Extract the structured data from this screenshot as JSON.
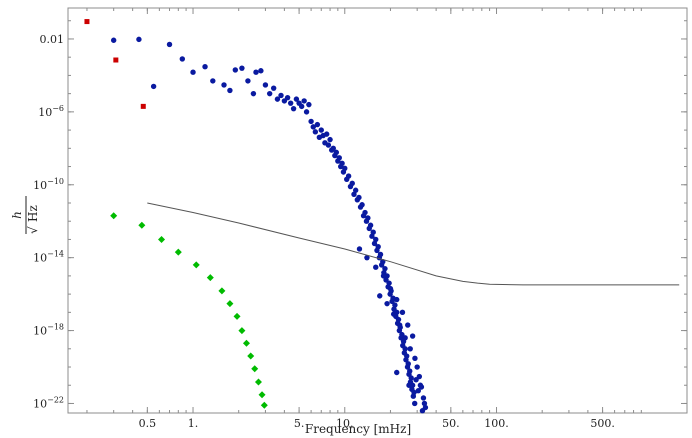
{
  "chart_data": {
    "type": "scatter",
    "xlabel": "Frequency [mHz]",
    "ylabel": "h / √Hz",
    "ylabel_parts": {
      "numerator": "h",
      "denominator": "Hz"
    },
    "x_scale": "log",
    "y_scale": "log",
    "xlim": [
      0.15,
      1800
    ],
    "ylim": [
      3e-23,
      0.5
    ],
    "grid": false,
    "x_ticks": [
      {
        "value": 0.5,
        "label": "0.5"
      },
      {
        "value": 1,
        "label": "1."
      },
      {
        "value": 5,
        "label": "5."
      },
      {
        "value": 10,
        "label": "10."
      },
      {
        "value": 50,
        "label": "50."
      },
      {
        "value": 100,
        "label": "100."
      },
      {
        "value": 500,
        "label": "500."
      }
    ],
    "y_ticks": [
      {
        "value": 0.01,
        "label": "0.01",
        "mant": "0.01",
        "exp": ""
      },
      {
        "value": 1e-06,
        "label": "10^-6",
        "mant": "10",
        "exp": "−6"
      },
      {
        "value": 1e-10,
        "label": "10^-10",
        "mant": "10",
        "exp": "−10"
      },
      {
        "value": 1e-14,
        "label": "10^-14",
        "mant": "10",
        "exp": "−14"
      },
      {
        "value": 1e-18,
        "label": "10^-18",
        "mant": "10",
        "exp": "−18"
      },
      {
        "value": 1e-22,
        "label": "10^-22",
        "mant": "10",
        "exp": "−22"
      }
    ],
    "series": [
      {
        "type": "scatter",
        "color": "#cc0000",
        "marker": "square",
        "points": [
          [
            0.2,
            0.09
          ],
          [
            0.31,
            0.0007
          ],
          [
            0.47,
            2e-06
          ]
        ]
      },
      {
        "type": "scatter",
        "color": "#00bb00",
        "marker": "diamond",
        "points": [
          [
            0.3,
            2e-12
          ],
          [
            0.46,
            6e-13
          ],
          [
            0.62,
            1e-13
          ],
          [
            0.8,
            2e-14
          ],
          [
            1.05,
            4e-15
          ],
          [
            1.3,
            8e-16
          ],
          [
            1.55,
            1.5e-16
          ],
          [
            1.75,
            3e-17
          ],
          [
            1.95,
            6e-18
          ],
          [
            2.1,
            1e-18
          ],
          [
            2.25,
            2e-19
          ],
          [
            2.4,
            4e-20
          ],
          [
            2.55,
            8e-21
          ],
          [
            2.7,
            1.5e-21
          ],
          [
            2.85,
            3e-22
          ],
          [
            2.95,
            8e-23
          ]
        ]
      },
      {
        "type": "scatter",
        "color": "#0a1aa0",
        "marker": "circle",
        "points": [
          [
            0.3,
            0.0085
          ],
          [
            0.44,
            0.0095
          ],
          [
            0.55,
            2.5e-05
          ],
          [
            0.7,
            0.005
          ],
          [
            0.85,
            0.0008
          ],
          [
            1,
            0.00015
          ],
          [
            1.2,
            0.0003
          ],
          [
            1.35,
            5e-05
          ],
          [
            1.6,
            3e-05
          ],
          [
            1.75,
            1.5e-05
          ],
          [
            1.9,
            0.0002
          ],
          [
            2.1,
            0.00025
          ],
          [
            2.3,
            5e-05
          ],
          [
            2.5,
            1e-05
          ],
          [
            2.6,
            0.00015
          ],
          [
            2.8,
            0.00018
          ],
          [
            3,
            3e-05
          ],
          [
            3.2,
            1e-05
          ],
          [
            3.4,
            2e-05
          ],
          [
            3.6,
            5e-06
          ],
          [
            3.8,
            8e-06
          ],
          [
            4,
            4e-06
          ],
          [
            4.2,
            6e-06
          ],
          [
            4.4,
            3e-06
          ],
          [
            4.6,
            1.5e-06
          ],
          [
            4.8,
            5e-06
          ],
          [
            5,
            3e-06
          ],
          [
            5.2,
            2e-06
          ],
          [
            5.4,
            4e-06
          ],
          [
            5.6,
            1e-06
          ],
          [
            5.8,
            2.5e-06
          ],
          [
            6,
            3e-07
          ],
          [
            6.2,
            1.5e-07
          ],
          [
            6.4,
            8e-08
          ],
          [
            6.6,
            2e-07
          ],
          [
            6.8,
            4e-08
          ],
          [
            7,
            1e-07
          ],
          [
            7.2,
            5e-08
          ],
          [
            7.4,
            2e-08
          ],
          [
            7.6,
            6e-08
          ],
          [
            7.8,
            1.5e-08
          ],
          [
            8,
            3e-08
          ],
          [
            8.2,
            8e-09
          ],
          [
            8.4,
            1e-08
          ],
          [
            8.6,
            4e-09
          ],
          [
            8.8,
            6e-09
          ],
          [
            9,
            2e-09
          ],
          [
            9.2,
            3e-09
          ],
          [
            9.4,
            1e-09
          ],
          [
            9.6,
            1.5e-09
          ],
          [
            9.8,
            5e-10
          ],
          [
            10,
            8e-10
          ],
          [
            10.3,
            2e-10
          ],
          [
            10.6,
            3e-10
          ],
          [
            10.9,
            8e-11
          ],
          [
            11.2,
            1.2e-10
          ],
          [
            11.5,
            3e-11
          ],
          [
            11.8,
            5e-11
          ],
          [
            12.1,
            1.5e-11
          ],
          [
            12.4,
            2e-11
          ],
          [
            12.7,
            6e-12
          ],
          [
            13,
            8e-12
          ],
          [
            13.3,
            2e-12
          ],
          [
            13.6,
            3e-12
          ],
          [
            13.9,
            1e-12
          ],
          [
            14.2,
            1.5e-12
          ],
          [
            14.5,
            4e-13
          ],
          [
            14.8,
            6e-13
          ],
          [
            15.1,
            1.5e-13
          ],
          [
            15.4,
            2.5e-13
          ],
          [
            15.7,
            6e-14
          ],
          [
            16,
            1e-13
          ],
          [
            16.3,
            2.5e-14
          ],
          [
            16.6,
            4e-14
          ],
          [
            16.9,
            1e-14
          ],
          [
            17.2,
            1.5e-14
          ],
          [
            17.5,
            4e-15
          ],
          [
            17.8,
            6e-15
          ],
          [
            18.1,
            1.5e-15
          ],
          [
            18.4,
            2.5e-15
          ],
          [
            18.7,
            6e-16
          ],
          [
            19,
            1e-15
          ],
          [
            19.3,
            2.5e-16
          ],
          [
            19.6,
            4e-16
          ],
          [
            19.9,
            1e-16
          ],
          [
            20.2,
            1.5e-16
          ],
          [
            20.5,
            4e-17
          ],
          [
            20.8,
            6e-17
          ],
          [
            21.1,
            1.5e-17
          ],
          [
            21.4,
            2.5e-17
          ],
          [
            21.7,
            6e-18
          ],
          [
            22,
            1e-17
          ],
          [
            22.3,
            2.5e-18
          ],
          [
            22.6,
            4e-18
          ],
          [
            22.9,
            1e-18
          ],
          [
            23.2,
            1.5e-18
          ],
          [
            23.5,
            4e-19
          ],
          [
            23.8,
            6e-19
          ],
          [
            24.1,
            1.5e-19
          ],
          [
            24.4,
            2.5e-19
          ],
          [
            24.7,
            6e-20
          ],
          [
            25,
            1e-19
          ],
          [
            25.3,
            2.5e-20
          ],
          [
            25.6,
            4e-20
          ],
          [
            25.9,
            1e-20
          ],
          [
            26.2,
            1.5e-20
          ],
          [
            26.5,
            4e-21
          ],
          [
            26.8,
            6e-21
          ],
          [
            27.1,
            1.5e-21
          ],
          [
            27.4,
            2.5e-21
          ],
          [
            27.7,
            6e-22
          ],
          [
            28,
            1e-21
          ],
          [
            28.3,
            2.5e-22
          ],
          [
            28.6,
            4e-22
          ],
          [
            28.9,
            1e-22
          ],
          [
            12.5,
            3e-14
          ],
          [
            14,
            1e-14
          ],
          [
            16,
            3e-15
          ],
          [
            18,
            1e-15
          ],
          [
            20,
            2e-16
          ],
          [
            22,
            5e-17
          ],
          [
            24,
            1e-17
          ],
          [
            26,
            2e-18
          ],
          [
            28,
            5e-19
          ],
          [
            17,
            8e-17
          ],
          [
            19,
            3e-17
          ],
          [
            21,
            8e-18
          ],
          [
            23,
            2e-18
          ],
          [
            25,
            4e-19
          ],
          [
            27,
            1e-19
          ],
          [
            29,
            3e-20
          ],
          [
            30,
            1e-20
          ],
          [
            31,
            3e-21
          ],
          [
            32,
            8e-22
          ],
          [
            33,
            2e-22
          ],
          [
            34,
            6e-23
          ],
          [
            30.5,
            5e-22
          ],
          [
            31.5,
            1e-21
          ],
          [
            29.5,
            2e-21
          ],
          [
            26.5,
            1e-21
          ],
          [
            22,
            5e-21
          ],
          [
            32.5,
            4e-23
          ],
          [
            33.5,
            1e-22
          ]
        ]
      },
      {
        "type": "line",
        "color": "#555555",
        "points": [
          [
            0.5,
            1e-11
          ],
          [
            1,
            3e-12
          ],
          [
            2,
            8e-13
          ],
          [
            5,
            1.2e-13
          ],
          [
            10,
            3e-14
          ],
          [
            20,
            6e-15
          ],
          [
            40,
            1e-15
          ],
          [
            60,
            5e-16
          ],
          [
            75,
            4e-16
          ],
          [
            90,
            3.5e-16
          ],
          [
            150,
            3.2e-16
          ],
          [
            300,
            3.2e-16
          ],
          [
            1600,
            3.2e-16
          ]
        ]
      }
    ]
  }
}
